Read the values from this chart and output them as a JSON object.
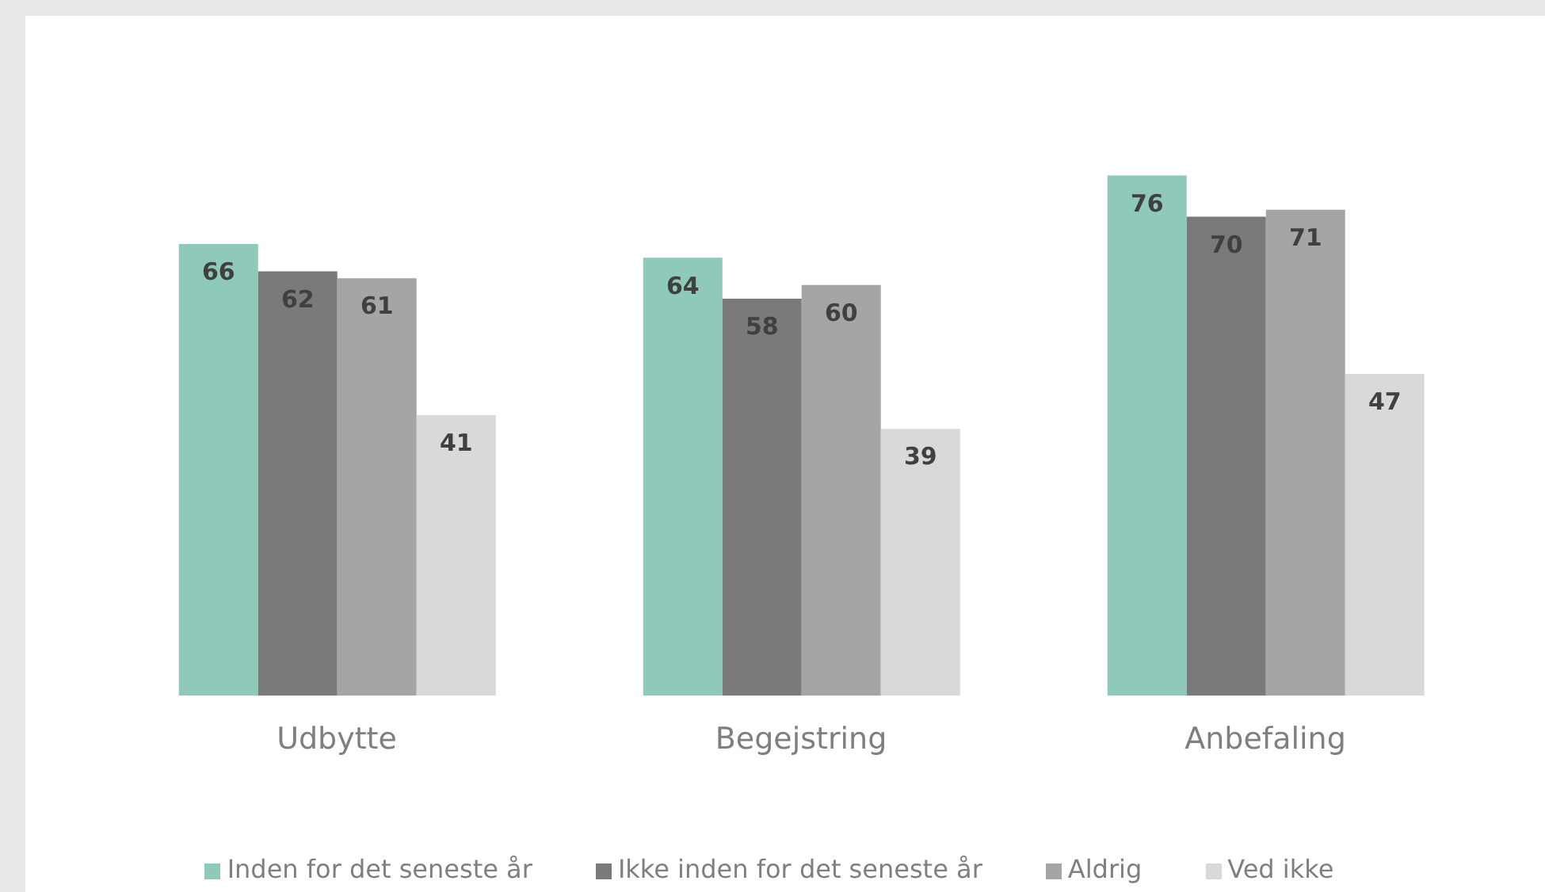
{
  "chart_data": {
    "type": "bar",
    "categories": [
      "Udbytte",
      "Begejstring",
      "Anbefaling"
    ],
    "series": [
      {
        "name": "Inden for det seneste år",
        "color": "#8fc9b9",
        "values": [
          66,
          64,
          76
        ]
      },
      {
        "name": "Ikke inden for det seneste år",
        "color": "#7a7a7a",
        "values": [
          62,
          58,
          70
        ]
      },
      {
        "name": "Aldrig",
        "color": "#a5a5a5",
        "values": [
          61,
          60,
          71
        ]
      },
      {
        "name": "Ved ikke",
        "color": "#d9d9d9",
        "values": [
          41,
          39,
          47
        ]
      }
    ],
    "data_labels": true,
    "legend": "bottom",
    "grid": false
  }
}
